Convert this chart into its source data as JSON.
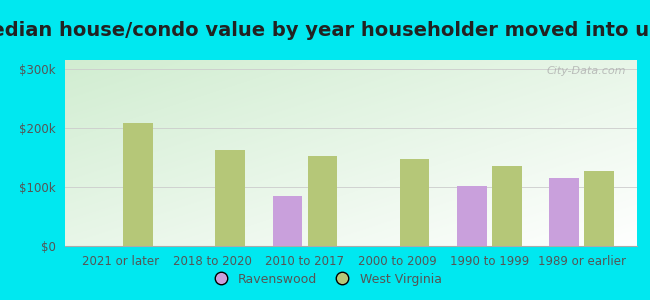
{
  "title": "Median house/condo value by year householder moved into unit",
  "categories": [
    "2021 or later",
    "2018 to 2020",
    "2010 to 2017",
    "2000 to 2009",
    "1990 to 1999",
    "1989 or earlier"
  ],
  "ravenswood": [
    null,
    null,
    85000,
    null,
    102000,
    115000
  ],
  "west_virginia": [
    208000,
    163000,
    152000,
    147000,
    135000,
    127000
  ],
  "ravenswood_color": "#c9a0dc",
  "west_virginia_color": "#b5c778",
  "background_outer": "#00e8f0",
  "ylabel_ticks": [
    "$0",
    "$100k",
    "$200k",
    "$300k"
  ],
  "ytick_values": [
    0,
    100000,
    200000,
    300000
  ],
  "ylim": [
    0,
    315000
  ],
  "bar_width": 0.32,
  "legend_ravenswood": "Ravenswood",
  "legend_wv": "West Virginia",
  "title_fontsize": 14,
  "tick_fontsize": 8.5,
  "watermark": "City-Data.com"
}
